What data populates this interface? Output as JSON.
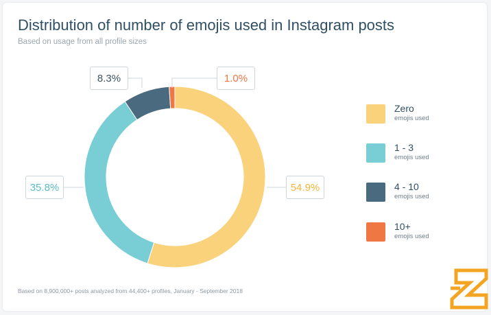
{
  "title": "Distribution of number of emojis used in Instagram posts",
  "subtitle": "Based on usage from all profile sizes",
  "footnote": "Based on 8,900,000+ posts analyzed from 44,400+ profiles, January - September 2018",
  "colors": {
    "zero": "#fad27c",
    "one_three": "#78ced4",
    "four_ten": "#4a6a80",
    "ten_plus": "#ee7744",
    "title": "#2f4f64",
    "logo": "#f2a422"
  },
  "logo_icon": "z-logo-icon",
  "chart_data": {
    "type": "pie",
    "donut": true,
    "title": "Distribution of number of emojis used in Instagram posts",
    "subtitle": "Based on usage from all profile sizes",
    "legend_position": "right",
    "series": [
      {
        "name": "Zero",
        "sub": "emojis used",
        "value": 54.9,
        "label": "54.9%",
        "color": "#fad27c",
        "label_color": "#f4b63a"
      },
      {
        "name": "1 - 3",
        "sub": "emojis used",
        "value": 35.8,
        "label": "35.8%",
        "color": "#78ced4",
        "label_color": "#5bbcc4"
      },
      {
        "name": "4 - 10",
        "sub": "emojis used",
        "value": 8.3,
        "label": "8.3%",
        "color": "#4a6a80",
        "label_color": "#3b5566"
      },
      {
        "name": "10+",
        "sub": "emojis used",
        "value": 1.0,
        "label": "1.0%",
        "color": "#ee7744",
        "label_color": "#ee7744"
      }
    ]
  }
}
